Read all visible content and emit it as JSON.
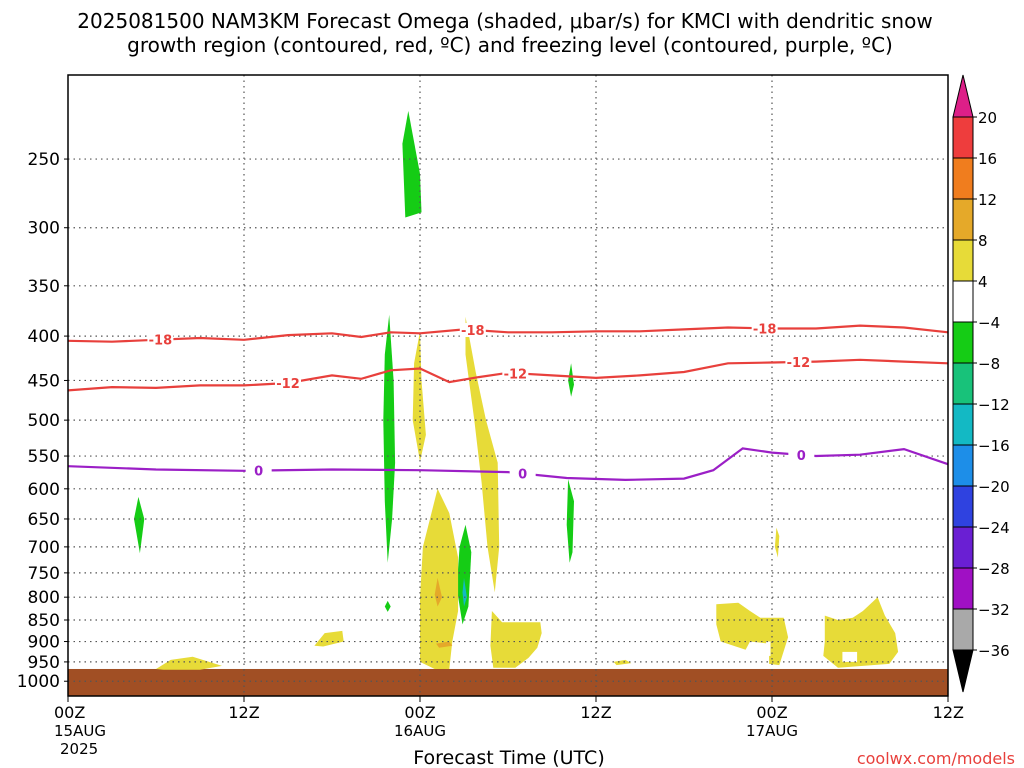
{
  "chart_data": {
    "type": "heatmap",
    "title_line1": "2025081500 NAM3KM Forecast Omega (shaded, μbar/s) for KMCI with dendritic snow",
    "title_line2": "growth region (contoured, red, ºC) and freezing level (contoured, purple, ºC)",
    "xlabel": "Forecast Time (UTC)",
    "watermark": "coolwx.com/models",
    "x_range_hours": [
      0,
      60
    ],
    "x_ticks": [
      {
        "hour": 0,
        "label": "00Z",
        "date": "15AUG",
        "year": "2025"
      },
      {
        "hour": 12,
        "label": "12Z"
      },
      {
        "hour": 24,
        "label": "00Z",
        "date": "16AUG"
      },
      {
        "hour": 36,
        "label": "12Z"
      },
      {
        "hour": 48,
        "label": "00Z",
        "date": "17AUG"
      },
      {
        "hour": 60,
        "label": "12Z"
      }
    ],
    "y_axis": {
      "scale": "log",
      "inverted": true,
      "range_hpa": [
        1040,
        200
      ],
      "ticks": [
        250,
        300,
        350,
        400,
        450,
        500,
        550,
        600,
        650,
        700,
        750,
        800,
        850,
        900,
        950,
        1000
      ]
    },
    "grid": "dotted",
    "colorbar": {
      "labels": [
        "20",
        "16",
        "12",
        "8",
        "4",
        "−4",
        "−8",
        "−12",
        "−16",
        "−20",
        "−24",
        "−28",
        "−32",
        "−36"
      ],
      "colors": [
        "#dd1f88",
        "#ee3d3d",
        "#f07d1e",
        "#e5a929",
        "#e7db38",
        "#ffffff",
        "#15cc15",
        "#18c27a",
        "#13b9c4",
        "#1d8ee8",
        "#2f42e0",
        "#6a1fd3",
        "#a010c4",
        "#a9a9a9",
        "#000000"
      ]
    },
    "contours": [
      {
        "color": "#e8403c",
        "label": "-18",
        "points": [
          [
            0,
            405
          ],
          [
            3,
            406
          ],
          [
            6,
            404
          ],
          [
            9,
            402
          ],
          [
            12,
            404
          ],
          [
            15,
            399
          ],
          [
            18,
            397
          ],
          [
            20,
            401
          ],
          [
            22,
            396
          ],
          [
            24,
            397
          ],
          [
            27,
            393
          ],
          [
            30,
            396
          ],
          [
            33,
            396
          ],
          [
            36,
            395
          ],
          [
            39,
            395
          ],
          [
            42,
            393
          ],
          [
            45,
            391
          ],
          [
            48,
            392
          ],
          [
            51,
            392
          ],
          [
            54,
            389
          ],
          [
            57,
            391
          ],
          [
            60,
            396
          ]
        ],
        "labels_at_hours": [
          6.3,
          27.6,
          47.5
        ]
      },
      {
        "color": "#e8403c",
        "label": "-12",
        "points": [
          [
            0,
            462
          ],
          [
            3,
            458
          ],
          [
            6,
            459
          ],
          [
            9,
            456
          ],
          [
            12,
            456
          ],
          [
            15,
            453
          ],
          [
            18,
            444
          ],
          [
            20,
            448
          ],
          [
            22,
            438
          ],
          [
            24,
            436
          ],
          [
            26,
            452
          ],
          [
            28,
            446
          ],
          [
            30,
            441
          ],
          [
            33,
            444
          ],
          [
            36,
            447
          ],
          [
            39,
            444
          ],
          [
            42,
            440
          ],
          [
            45,
            430
          ],
          [
            48,
            429
          ],
          [
            51,
            428
          ],
          [
            54,
            426
          ],
          [
            57,
            428
          ],
          [
            60,
            430
          ]
        ],
        "labels_at_hours": [
          15.0,
          30.5,
          49.8
        ]
      },
      {
        "color": "#9b1fc6",
        "label": "0",
        "points": [
          [
            0,
            565
          ],
          [
            6,
            570
          ],
          [
            12,
            572
          ],
          [
            18,
            570
          ],
          [
            24,
            571
          ],
          [
            30,
            574
          ],
          [
            34,
            583
          ],
          [
            38,
            586
          ],
          [
            42,
            584
          ],
          [
            44,
            571
          ],
          [
            46,
            539
          ],
          [
            48,
            545
          ],
          [
            51,
            550
          ],
          [
            54,
            548
          ],
          [
            57,
            540
          ],
          [
            60,
            562
          ]
        ],
        "labels_at_hours": [
          13.0,
          31.0,
          50.0
        ]
      }
    ],
    "ground_hpa": 968,
    "ground_color": "#a14f24",
    "omega_regions": [
      {
        "value": -6,
        "color": "#15cc15",
        "points": [
          [
            4.8,
            613
          ],
          [
            5.2,
            650
          ],
          [
            4.9,
            712
          ],
          [
            4.5,
            650
          ]
        ]
      },
      {
        "value": -6,
        "color": "#15cc15",
        "points": [
          [
            23.2,
            220
          ],
          [
            24.0,
            260
          ],
          [
            24.1,
            288
          ],
          [
            23.0,
            292
          ],
          [
            22.8,
            240
          ]
        ]
      },
      {
        "value": -6,
        "color": "#15cc15",
        "points": [
          [
            21.9,
            378
          ],
          [
            22.2,
            450
          ],
          [
            22.3,
            560
          ],
          [
            22.1,
            650
          ],
          [
            21.8,
            730
          ],
          [
            21.6,
            620
          ],
          [
            21.5,
            500
          ],
          [
            21.6,
            420
          ]
        ]
      },
      {
        "value": -6,
        "color": "#15cc15",
        "points": [
          [
            21.8,
            808
          ],
          [
            22.0,
            820
          ],
          [
            21.8,
            832
          ],
          [
            21.6,
            820
          ]
        ]
      },
      {
        "value": -6,
        "color": "#15cc15",
        "points": [
          [
            27.1,
            660
          ],
          [
            27.5,
            710
          ],
          [
            27.3,
            820
          ],
          [
            26.9,
            860
          ],
          [
            26.5,
            780
          ],
          [
            26.7,
            700
          ]
        ]
      },
      {
        "value": -6,
        "color": "#15cc15",
        "points": [
          [
            34.3,
            430
          ],
          [
            34.5,
            455
          ],
          [
            34.3,
            470
          ],
          [
            34.1,
            450
          ]
        ]
      },
      {
        "value": -6,
        "color": "#15cc15",
        "points": [
          [
            34.1,
            585
          ],
          [
            34.5,
            620
          ],
          [
            34.4,
            710
          ],
          [
            34.2,
            730
          ],
          [
            34.0,
            660
          ]
        ]
      },
      {
        "value": 5,
        "color": "#e7db38",
        "points": [
          [
            6.0,
            968
          ],
          [
            7.0,
            945
          ],
          [
            8.5,
            937
          ],
          [
            10.5,
            960
          ],
          [
            9.0,
            970
          ],
          [
            6.5,
            970
          ]
        ]
      },
      {
        "value": 5,
        "color": "#e7db38",
        "points": [
          [
            16.8,
            910
          ],
          [
            17.5,
            880
          ],
          [
            18.7,
            875
          ],
          [
            18.8,
            900
          ],
          [
            17.4,
            912
          ]
        ]
      },
      {
        "value": 5,
        "color": "#e7db38",
        "points": [
          [
            24.0,
            395
          ],
          [
            24.1,
            450
          ],
          [
            24.4,
            520
          ],
          [
            24.0,
            558
          ],
          [
            23.5,
            500
          ],
          [
            23.6,
            430
          ]
        ]
      },
      {
        "value": 5,
        "color": "#e7db38",
        "points": [
          [
            27.1,
            380
          ],
          [
            27.8,
            440
          ],
          [
            28.5,
            500
          ],
          [
            29.3,
            560
          ],
          [
            29.4,
            700
          ],
          [
            29.1,
            790
          ],
          [
            28.6,
            700
          ],
          [
            28.2,
            590
          ],
          [
            27.7,
            500
          ],
          [
            27.1,
            420
          ]
        ]
      },
      {
        "value": 5,
        "color": "#e7db38",
        "points": [
          [
            25.2,
            600
          ],
          [
            26.0,
            640
          ],
          [
            26.6,
            720
          ],
          [
            26.6,
            830
          ],
          [
            26.2,
            900
          ],
          [
            26.0,
            968
          ],
          [
            25.0,
            968
          ],
          [
            24.0,
            950
          ],
          [
            24.0,
            800
          ],
          [
            24.2,
            700
          ]
        ]
      },
      {
        "value": 5,
        "color": "#e7db38",
        "points": [
          [
            28.9,
            830
          ],
          [
            29.6,
            855
          ],
          [
            32.2,
            855
          ],
          [
            32.3,
            880
          ],
          [
            32.0,
            915
          ],
          [
            31.4,
            940
          ],
          [
            30.5,
            965
          ],
          [
            29.0,
            965
          ],
          [
            28.8,
            910
          ]
        ]
      },
      {
        "value": 5,
        "color": "#e7db38",
        "points": [
          [
            37.2,
            950
          ],
          [
            38.0,
            945
          ],
          [
            38.4,
            953
          ],
          [
            37.4,
            958
          ]
        ]
      },
      {
        "value": 5,
        "color": "#e7db38",
        "points": [
          [
            44.2,
            815
          ],
          [
            45.7,
            812
          ],
          [
            46.5,
            830
          ],
          [
            47.2,
            845
          ],
          [
            48.8,
            845
          ],
          [
            49.1,
            890
          ],
          [
            48.5,
            958
          ],
          [
            47.8,
            955
          ],
          [
            47.8,
            905
          ],
          [
            46.5,
            900
          ],
          [
            46.2,
            920
          ],
          [
            44.5,
            900
          ],
          [
            44.2,
            860
          ]
        ]
      },
      {
        "value": 5,
        "color": "#e7db38",
        "points": [
          [
            48.3,
            665
          ],
          [
            48.5,
            680
          ],
          [
            48.4,
            720
          ],
          [
            48.2,
            700
          ]
        ]
      },
      {
        "value": 5,
        "color": "#e7db38",
        "points": [
          [
            51.6,
            840
          ],
          [
            52.5,
            850
          ],
          [
            53.5,
            845
          ],
          [
            54.2,
            830
          ],
          [
            55.2,
            800
          ],
          [
            55.7,
            840
          ],
          [
            56.4,
            880
          ],
          [
            56.6,
            925
          ],
          [
            56.0,
            955
          ],
          [
            52.5,
            965
          ],
          [
            51.5,
            935
          ],
          [
            51.6,
            900
          ]
        ]
      },
      {
        "value": 9,
        "color": "#e5a929",
        "points": [
          [
            25.2,
            760
          ],
          [
            25.5,
            800
          ],
          [
            25.2,
            820
          ],
          [
            25.0,
            795
          ]
        ]
      },
      {
        "value": 9,
        "color": "#e5a929",
        "points": [
          [
            25.1,
            905
          ],
          [
            26.0,
            900
          ],
          [
            26.2,
            910
          ],
          [
            25.3,
            915
          ]
        ]
      },
      {
        "value": -12,
        "color": "#13b9c4",
        "points": [
          [
            27.0,
            760
          ],
          [
            27.2,
            800
          ],
          [
            27.0,
            820
          ],
          [
            26.9,
            790
          ]
        ]
      }
    ],
    "white_holes": [
      [
        [
          52.8,
          925
        ],
        [
          53.8,
          925
        ],
        [
          53.8,
          950
        ],
        [
          52.8,
          950
        ]
      ],
      [
        [
          47.6,
          900
        ],
        [
          47.9,
          900
        ],
        [
          47.9,
          935
        ],
        [
          47.6,
          935
        ]
      ]
    ]
  }
}
